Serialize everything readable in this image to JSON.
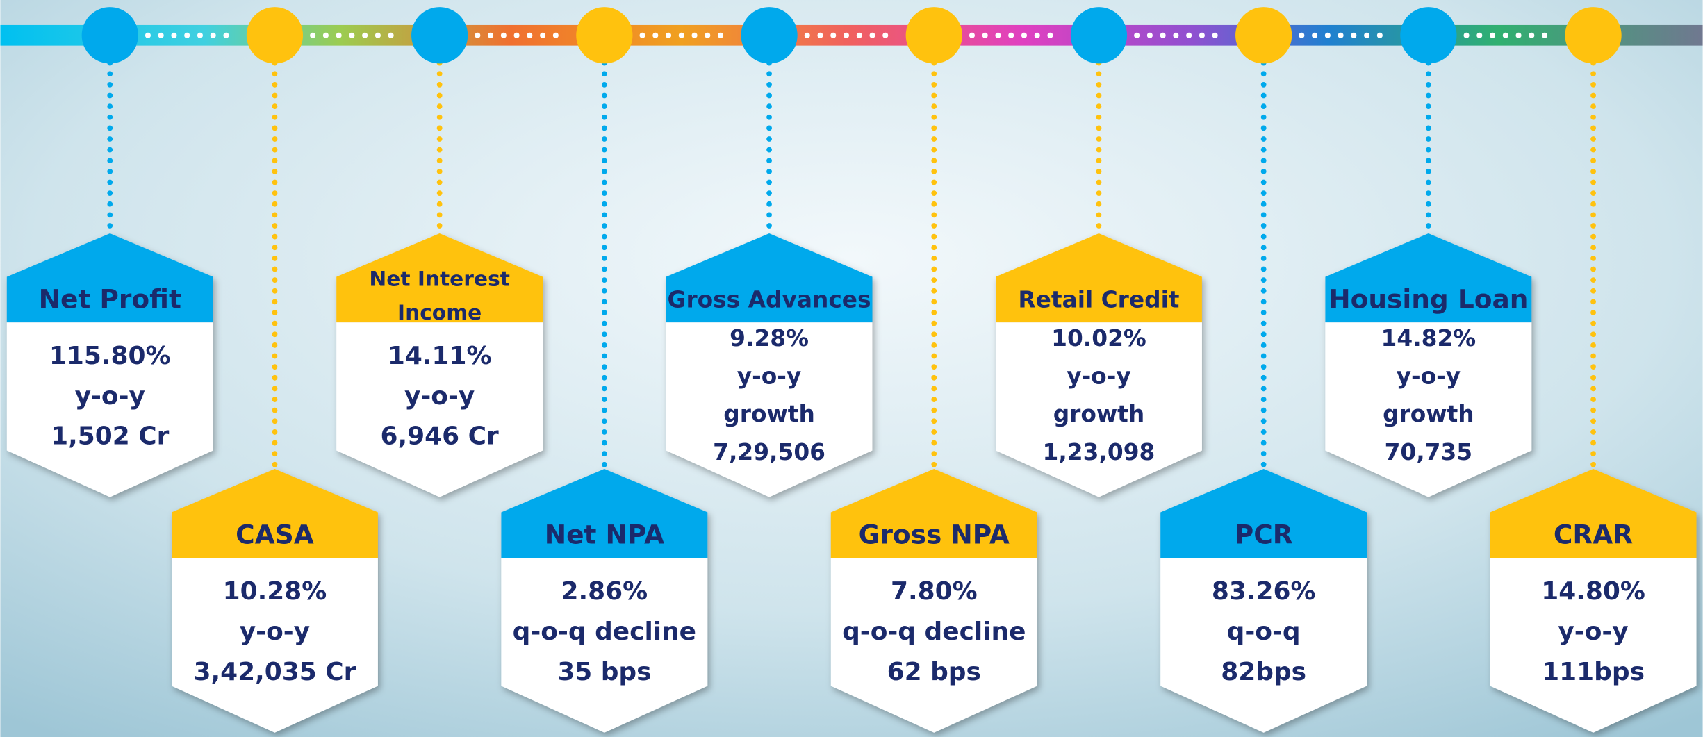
{
  "nodes": [
    {
      "title": [
        "Net Profit"
      ],
      "lines": [
        "115.80%",
        "y-o-y",
        "1,502 Cr"
      ]
    },
    {
      "title": [
        "CASA"
      ],
      "lines": [
        "10.28%",
        "y-o-y",
        "3,42,035 Cr"
      ]
    },
    {
      "title": [
        "Net Interest",
        "Income"
      ],
      "lines": [
        "14.11%",
        "y-o-y",
        "6,946 Cr"
      ]
    },
    {
      "title": [
        "Net NPA"
      ],
      "lines": [
        "2.86%",
        "q-o-q decline",
        "35 bps"
      ]
    },
    {
      "title": [
        "Gross Advances"
      ],
      "lines": [
        "9.28%",
        "y-o-y",
        "growth",
        "7,29,506"
      ]
    },
    {
      "title": [
        "Gross NPA"
      ],
      "lines": [
        "7.80%",
        "q-o-q decline",
        "62 bps"
      ]
    },
    {
      "title": [
        "Retail Credit"
      ],
      "lines": [
        "10.02%",
        "y-o-y",
        "growth",
        "1,23,098"
      ]
    },
    {
      "title": [
        "PCR"
      ],
      "lines": [
        "83.26%",
        "q-o-q",
        "82bps"
      ]
    },
    {
      "title": [
        "Housing Loan"
      ],
      "lines": [
        "14.82%",
        "y-o-y",
        "growth",
        "70,735"
      ]
    },
    {
      "title": [
        "CRAR"
      ],
      "lines": [
        "14.80%",
        "y-o-y",
        "111bps"
      ]
    }
  ]
}
